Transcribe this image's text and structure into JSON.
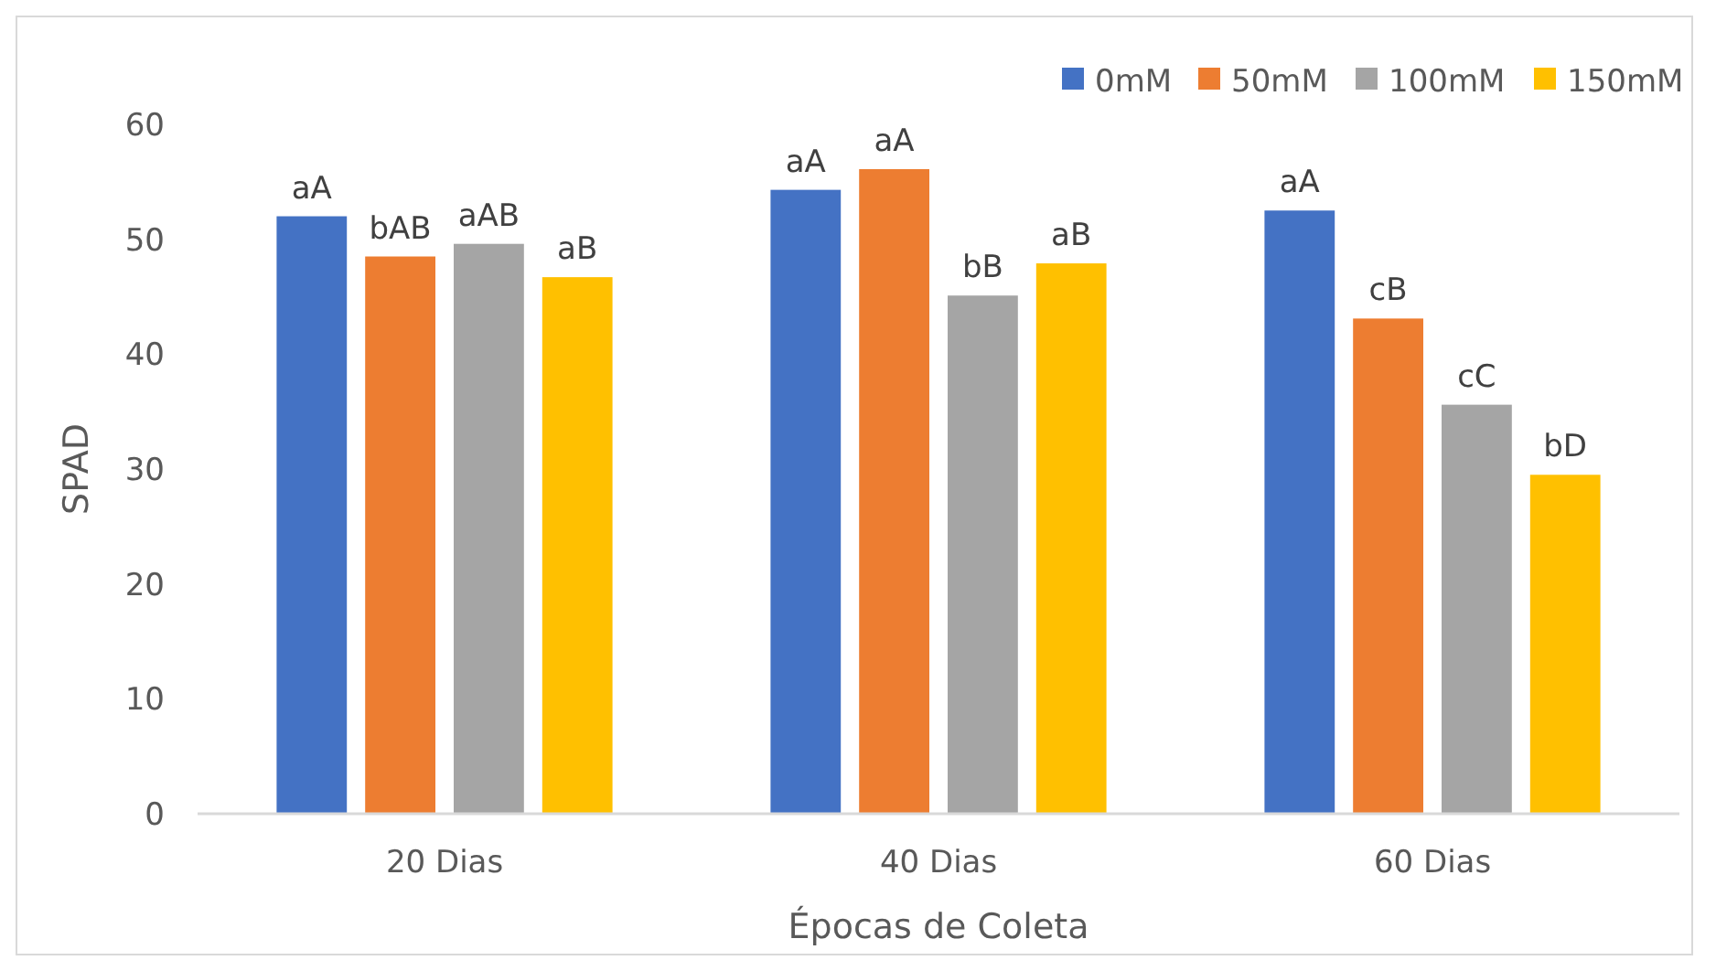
{
  "chart_data": {
    "type": "bar",
    "xlabel": "Épocas de Coleta",
    "ylabel": "SPAD",
    "categories": [
      "20 Dias",
      "40 Dias",
      "60 Dias"
    ],
    "series": [
      {
        "name": "0mM",
        "color": "#4472c4",
        "values": [
          52.0,
          54.3,
          52.5
        ],
        "value_labels": [
          "aA",
          "aA",
          "aA"
        ]
      },
      {
        "name": "50mM",
        "color": "#ed7d31",
        "values": [
          48.5,
          56.1,
          43.1
        ],
        "value_labels": [
          "bAB",
          "aA",
          "cB"
        ]
      },
      {
        "name": "100mM",
        "color": "#a5a5a5",
        "values": [
          49.6,
          45.1,
          35.6
        ],
        "value_labels": [
          "aAB",
          "bB",
          "cC"
        ]
      },
      {
        "name": "150mM",
        "color": "#ffc000",
        "values": [
          46.7,
          47.9,
          29.5
        ],
        "value_labels": [
          "aB",
          "aB",
          "bD"
        ]
      }
    ],
    "ylim": [
      0,
      60
    ],
    "yticks": [
      0,
      10,
      20,
      30,
      40,
      50,
      60
    ],
    "grid": false,
    "legend": "top right"
  }
}
